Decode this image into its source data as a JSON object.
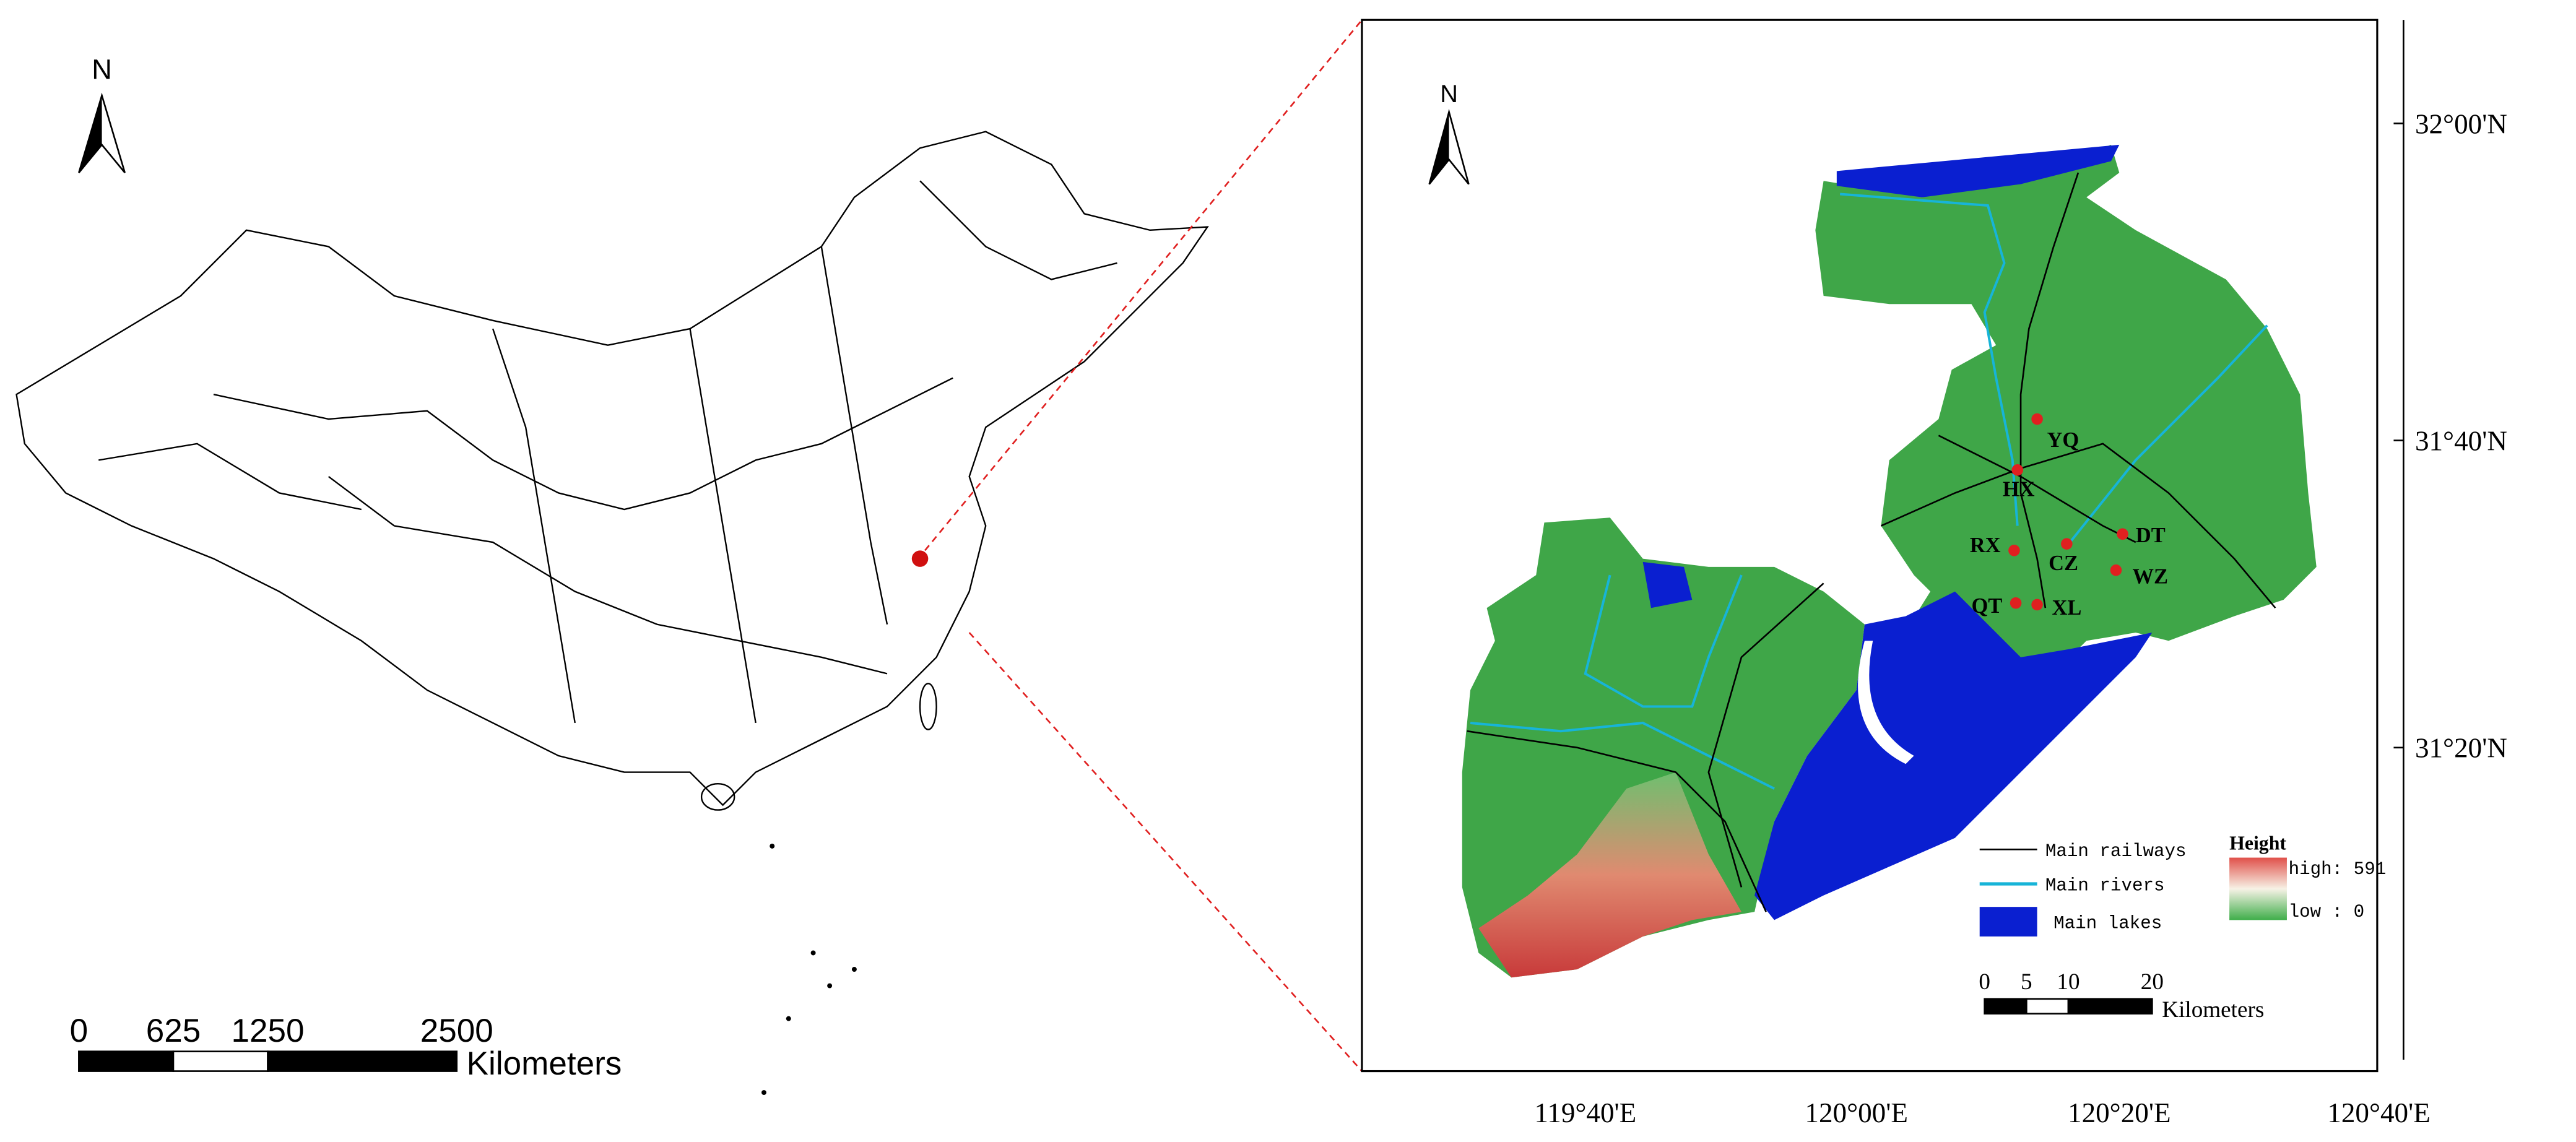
{
  "left_map": {
    "north": "N",
    "scale_bar": {
      "ticks": [
        0,
        625,
        1250,
        2500
      ],
      "unit": "Kilometers"
    }
  },
  "right_map": {
    "north": "N",
    "sites": [
      "YQ",
      "HX",
      "RX",
      "CZ",
      "DT",
      "WZ",
      "QT",
      "XL"
    ],
    "legend": {
      "railways": "Main railways",
      "rivers": "Main rivers",
      "lakes": "Main lakes",
      "height_title": "Height",
      "high": "high: 591",
      "low": "low : 0"
    },
    "scale_bar": {
      "ticks": [
        0,
        5,
        10,
        20
      ],
      "unit": "Kilometers"
    },
    "lat_labels": [
      "32°00'N",
      "31°40'N",
      "31°20'N"
    ],
    "lon_labels": [
      "119°40'E",
      "120°00'E",
      "120°20'E",
      "120°40'E"
    ]
  }
}
